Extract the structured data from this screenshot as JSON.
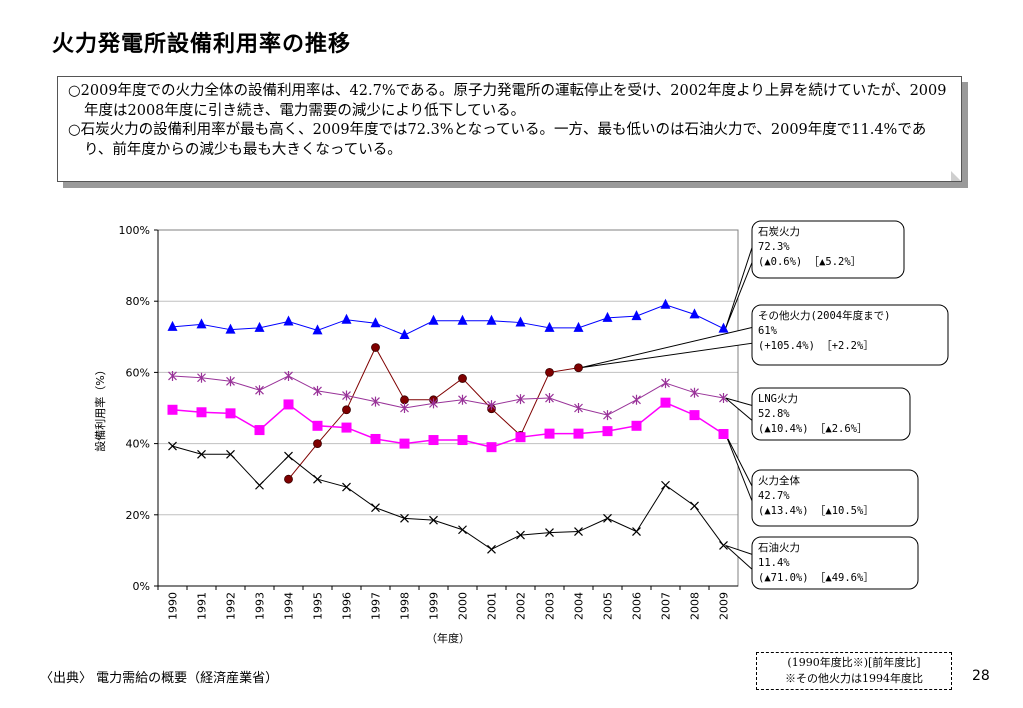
{
  "slide": {
    "title": "火力発電所設備利用率の推移",
    "page_number": "28",
    "source": "〈出典〉 電力需給の概要（経済産業省）",
    "note_line1": "(1990年度比※)[前年度比]",
    "note_line2": "※その他火力は1994年度比"
  },
  "summary": {
    "p1": "○2009年度での火力全体の設備利用率は、42.7%である。原子力発電所の運転停止を受け、2002年度より上昇を続けていたが、2009年度は2008年度に引き続き、電力需要の減少により低下している。",
    "p2": "○石炭火力の設備利用率が最も高く、2009年度では72.3%となっている。一方、最も低いのは石油火力で、2009年度で11.4%であり、前年度からの減少も最も大きくなっている。"
  },
  "colors": {
    "coal": "#0000ff",
    "other": "#7f0000",
    "lng": "#993399",
    "total": "#ff00ff",
    "oil": "#000000",
    "grid": "#c0c0c0"
  },
  "chart_data": {
    "type": "line",
    "title": "",
    "xlabel": "（年度）",
    "ylabel": "設備利用率（%）",
    "ylim": [
      0,
      100
    ],
    "yticks": [
      "0%",
      "20%",
      "40%",
      "60%",
      "80%",
      "100%"
    ],
    "categories": [
      "1990",
      "1991",
      "1992",
      "1993",
      "1994",
      "1995",
      "1996",
      "1997",
      "1998",
      "1999",
      "2000",
      "2001",
      "2002",
      "2003",
      "2004",
      "2005",
      "2006",
      "2007",
      "2008",
      "2009"
    ],
    "grid": true,
    "series": [
      {
        "key": "coal",
        "marker": "triangle",
        "values": [
          72.8,
          73.5,
          72.0,
          72.5,
          74.3,
          71.8,
          74.8,
          73.8,
          70.5,
          74.5,
          74.5,
          74.5,
          74.0,
          72.5,
          72.5,
          75.3,
          75.8,
          79.0,
          76.3,
          72.3
        ]
      },
      {
        "key": "other",
        "marker": "circle",
        "values": [
          null,
          null,
          null,
          null,
          30.0,
          40.0,
          49.5,
          67.0,
          52.3,
          52.3,
          58.3,
          49.8,
          42.3,
          60.0,
          61.3,
          null,
          null,
          null,
          null,
          null
        ]
      },
      {
        "key": "lng",
        "marker": "asterisk",
        "values": [
          59.0,
          58.5,
          57.5,
          55.0,
          59.0,
          54.8,
          53.5,
          51.8,
          50.0,
          51.3,
          52.3,
          50.8,
          52.5,
          52.8,
          50.0,
          48.0,
          52.3,
          57.0,
          54.3,
          52.8
        ]
      },
      {
        "key": "total",
        "marker": "square",
        "values": [
          49.5,
          48.8,
          48.5,
          43.8,
          51.0,
          45.0,
          44.5,
          41.3,
          40.0,
          41.0,
          41.0,
          39.0,
          41.8,
          42.8,
          42.8,
          43.5,
          45.0,
          51.5,
          48.0,
          42.7
        ]
      },
      {
        "key": "oil",
        "marker": "x",
        "values": [
          39.3,
          37.0,
          37.0,
          28.3,
          36.5,
          30.0,
          27.8,
          22.0,
          19.0,
          18.5,
          15.8,
          10.3,
          14.3,
          15.0,
          15.3,
          19.0,
          15.3,
          28.3,
          22.5,
          11.4
        ]
      }
    ],
    "callouts": [
      {
        "key": "coal",
        "line1": "石炭火力",
        "line2": "72.3%",
        "line3": "(▲0.6%) ［▲5.2%］"
      },
      {
        "key": "other",
        "line1": "その他火力(2004年度まで)",
        "line2": "61%",
        "line3": "(+105.4%) ［+2.2%］"
      },
      {
        "key": "lng",
        "line1": "LNG火力",
        "line2": "52.8%",
        "line3": "(▲10.4%) ［▲2.6%］"
      },
      {
        "key": "total",
        "line1": "火力全体",
        "line2": "42.7%",
        "line3": "(▲13.4%) ［▲10.5%］"
      },
      {
        "key": "oil",
        "line1": "石油火力",
        "line2": "11.4%",
        "line3": "(▲71.0%) ［▲49.6%］"
      }
    ]
  }
}
